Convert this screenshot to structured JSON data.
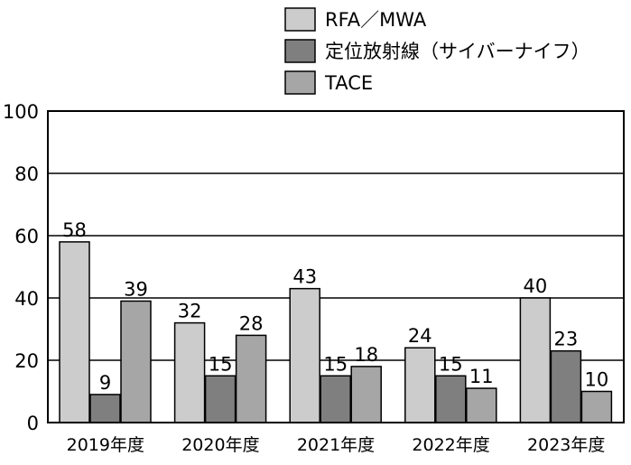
{
  "chart_data": {
    "type": "bar",
    "categories": [
      "2019年度",
      "2020年度",
      "2021年度",
      "2022年度",
      "2023年度"
    ],
    "series": [
      {
        "name": "RFA／MWA",
        "values": [
          58,
          32,
          43,
          24,
          40
        ],
        "color": "#cccccc"
      },
      {
        "name": "定位放射線（サイバーナイフ）",
        "values": [
          9,
          15,
          15,
          15,
          23
        ],
        "color": "#7f7f7f"
      },
      {
        "name": "TACE",
        "values": [
          39,
          28,
          18,
          11,
          10
        ],
        "color": "#a6a6a6"
      }
    ],
    "ylim": [
      0,
      100
    ],
    "yticks": [
      0,
      20,
      40,
      60,
      80,
      100
    ],
    "title": "",
    "xlabel": "",
    "ylabel": "",
    "grid": true,
    "legend_position": "top-right",
    "data_labels": true
  }
}
